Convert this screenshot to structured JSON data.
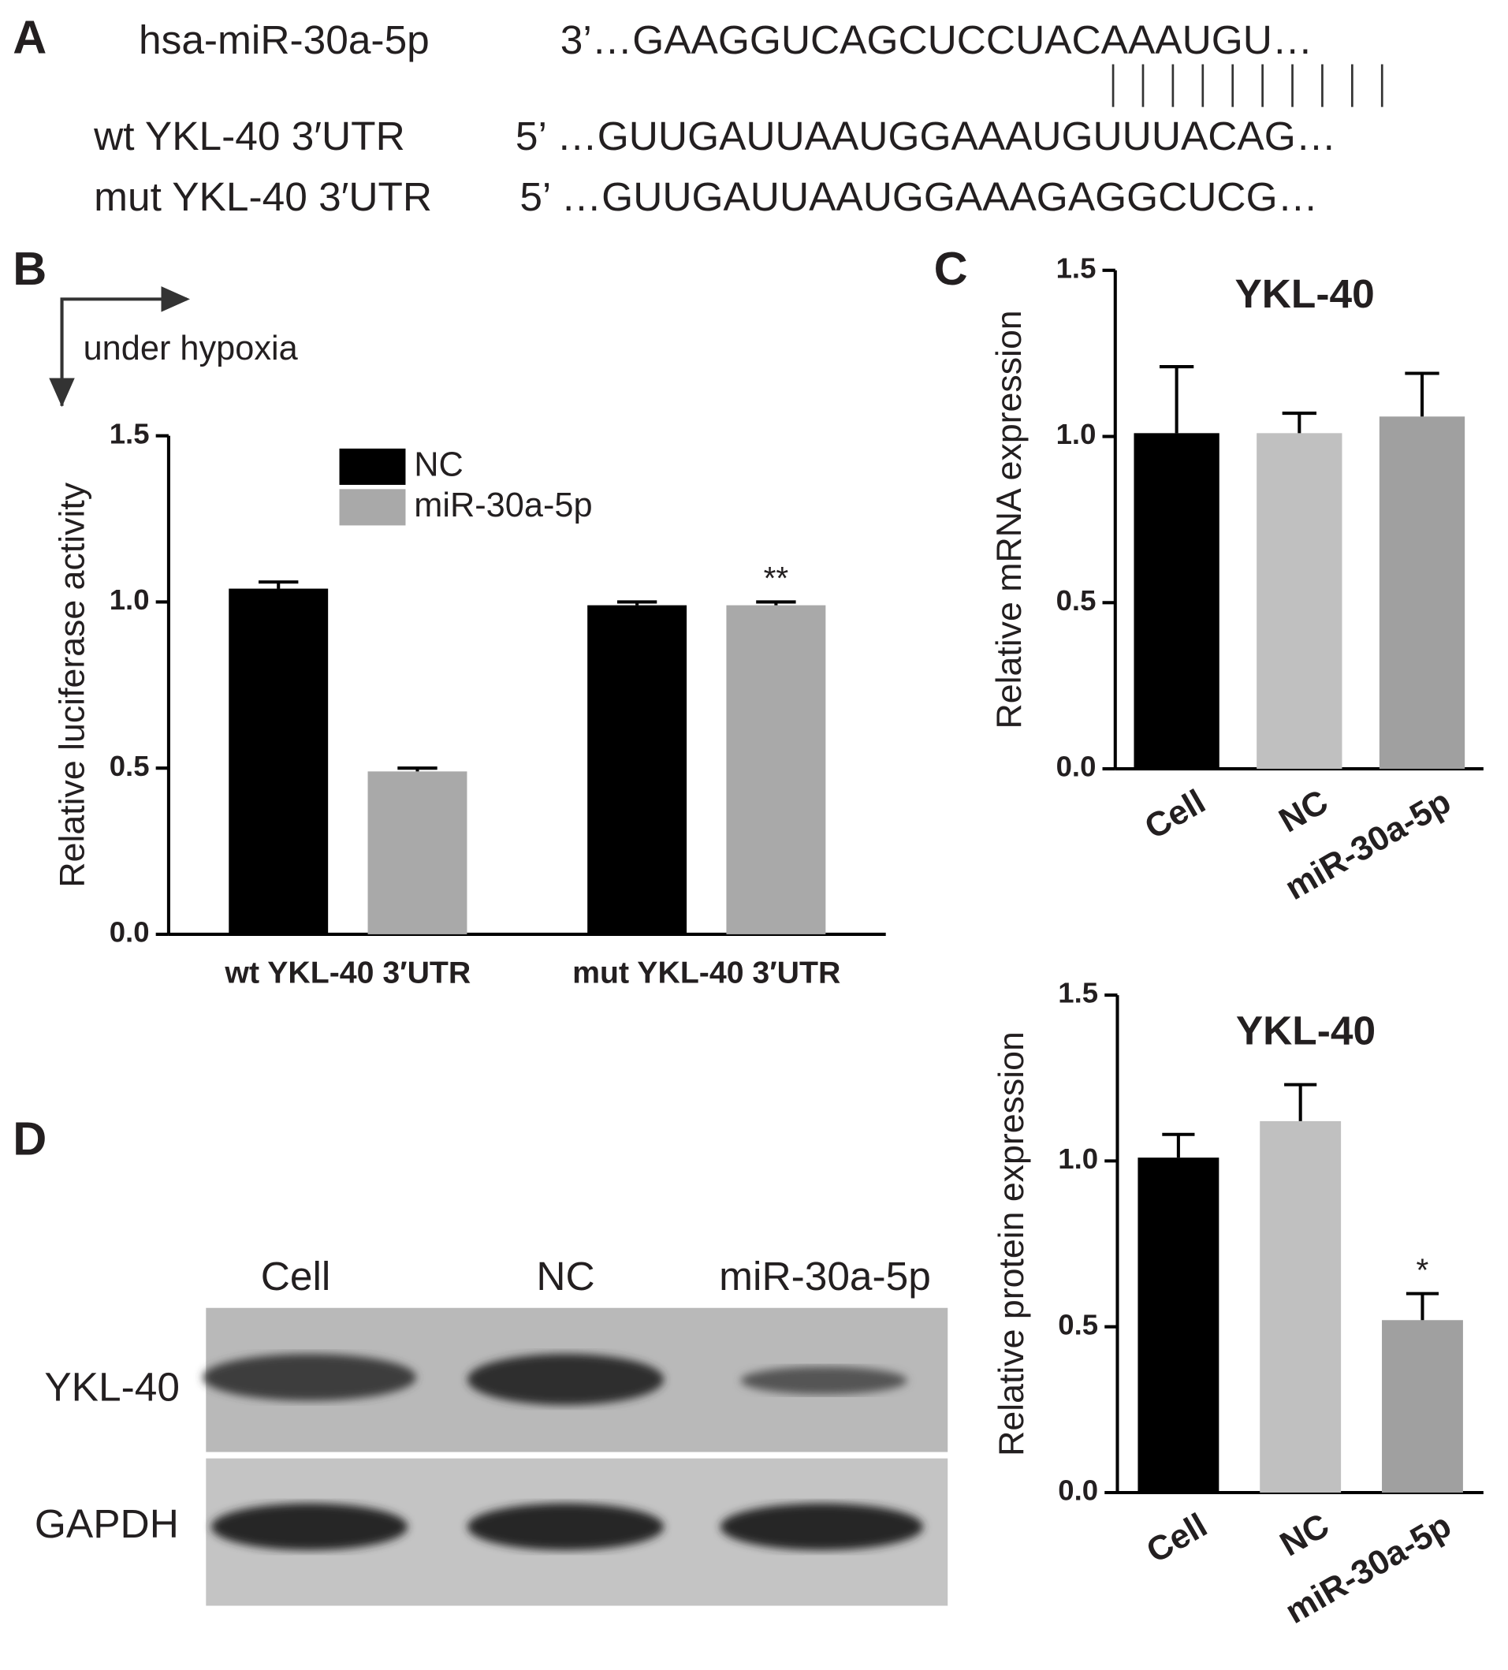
{
  "panels": [
    "A",
    "B",
    "C",
    "D"
  ],
  "sequences": {
    "mirna_name": "hsa-miR-30a-5p",
    "mirna_seq": "3’…GAAGGUCAGCUCCUACAAAUGU…",
    "wt_name": "wt YKL-40 3′UTR",
    "wt_seq": "5’ …GUUGAUUAAUGGAAAUGUUUACAG…",
    "mut_name": "mut YKL-40 3′UTR",
    "mut_seq": "5’ …GUUGAUUAAUGGAAAGAGGCUCG…"
  },
  "condition": "under hypoxia",
  "blot": {
    "lanes": [
      "Cell",
      "NC",
      "miR-30a-5p"
    ],
    "rows": [
      "YKL-40",
      "GAPDH"
    ]
  },
  "chart_data": [
    {
      "type": "bar",
      "ylabel": "Relative luciferase activity",
      "categories": [
        "wt YKL-40 3′UTR",
        "mut YKL-40 3′UTR"
      ],
      "series": [
        {
          "name": "NC",
          "color": "#000000",
          "values": [
            1.04,
            0.99
          ],
          "errors": [
            0.02,
            0.01
          ]
        },
        {
          "name": "miR-30a-5p",
          "color": "#a9a9a9",
          "values": [
            0.49,
            0.99
          ],
          "errors": [
            0.01,
            0.01
          ],
          "labels": [
            null,
            "**"
          ]
        }
      ],
      "ylim": [
        0,
        1.5
      ],
      "yticks": [
        {
          "value": 0,
          "label": "0.0"
        },
        {
          "value": 0.5,
          "label": "0.5"
        },
        {
          "value": 1,
          "label": "1.0"
        },
        {
          "value": 1.5,
          "label": "1.5"
        }
      ]
    },
    {
      "type": "bar",
      "title": "YKL-40",
      "ylabel": "Relative mRNA expression",
      "categories": [
        "Cell",
        "NC",
        "miR-30a-5p"
      ],
      "values": [
        1.01,
        1.01,
        1.06
      ],
      "errors": [
        0.2,
        0.06,
        0.13
      ],
      "colors": [
        "#000000",
        "#c0c0c0",
        "#a0a0a0"
      ],
      "ylim": [
        0,
        1.5
      ],
      "yticks": [
        {
          "value": 0,
          "label": "0.0"
        },
        {
          "value": 0.5,
          "label": "0.5"
        },
        {
          "value": 1,
          "label": "1.0"
        },
        {
          "value": 1.5,
          "label": "1.5"
        }
      ]
    },
    {
      "type": "bar",
      "title": "YKL-40",
      "ylabel": "Relative protein expression",
      "categories": [
        "Cell",
        "NC",
        "miR-30a-5p"
      ],
      "values": [
        1.01,
        1.12,
        0.52
      ],
      "errors": [
        0.07,
        0.11,
        0.08
      ],
      "labels": [
        null,
        null,
        "*"
      ],
      "colors": [
        "#000000",
        "#c0c0c0",
        "#a0a0a0"
      ],
      "ylim": [
        0,
        1.5
      ],
      "yticks": [
        {
          "value": 0,
          "label": "0.0"
        },
        {
          "value": 0.5,
          "label": "0.5"
        },
        {
          "value": 1,
          "label": "1.0"
        },
        {
          "value": 1.5,
          "label": "1.5"
        }
      ]
    }
  ]
}
